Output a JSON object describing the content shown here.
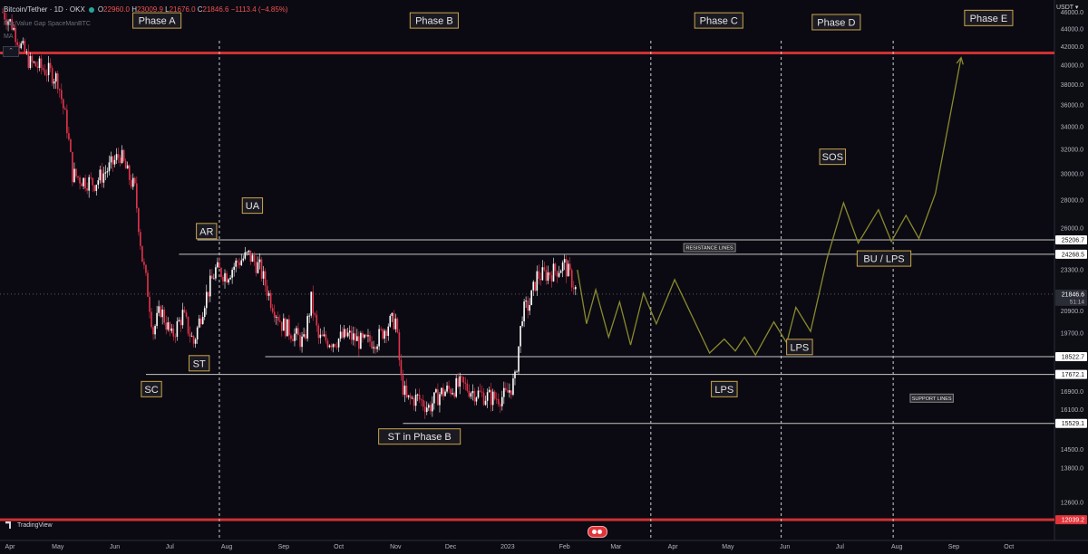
{
  "header": {
    "symbol": "Bitcoin/Tether · 1D · OKX",
    "ohlc_open_label": "O",
    "ohlc_open": "22960.0",
    "ohlc_high_label": "H",
    "ohlc_high": "23009.9",
    "ohlc_low_label": "L",
    "ohlc_low": "21676.0",
    "ohlc_close_label": "C",
    "ohlc_close": "21846.6",
    "ohlc_change": "−1113.4 (−4.85%)",
    "indicator_1": "Fair Value Gap SpaceManBTC",
    "indicator_2": "MA",
    "collapse_icon": "chevron-up-icon"
  },
  "currency_label": "USDT",
  "branding": "TradingView",
  "colors": {
    "background": "#0b0a12",
    "candle_up": "#ffffff",
    "candle_down": "#e5334b",
    "projection": "#8a8a2e",
    "label_border": "#c9a64b",
    "label_bg": "#1b1a22",
    "resistance_line": "#c6c6c6",
    "red_line": "#ff3b3b"
  },
  "chart_data": {
    "type": "candlestick",
    "title": "",
    "y_axis": {
      "scale": "log",
      "range": [
        11400,
        47500
      ],
      "tick_labels": [
        "46000.0",
        "44000.0",
        "42000.0",
        "40000.0",
        "38000.0",
        "36000.0",
        "34000.0",
        "32000.0",
        "30000.0",
        "28000.0",
        "26000.0",
        "23300.0",
        "20900.0",
        "19700.0",
        "17600.0",
        "16900.0",
        "16100.0",
        "15500.0",
        "14500.0",
        "13800.0",
        "12600.0",
        "12000.0"
      ],
      "price_badges": [
        {
          "value": "25206.7",
          "style": "plain"
        },
        {
          "value": "24268.5",
          "style": "plain"
        },
        {
          "value": "21846.6",
          "style": "current",
          "sub": "51:14"
        },
        {
          "value": "18522.7",
          "style": "plain"
        },
        {
          "value": "17672.1",
          "style": "plain"
        },
        {
          "value": "15529.1",
          "style": "plain"
        },
        {
          "value": "12039.2",
          "style": "red"
        }
      ]
    },
    "x_axis": {
      "tick_labels": [
        "Apr",
        "May",
        "Jun",
        "Jul",
        "Aug",
        "Sep",
        "Oct",
        "Nov",
        "Dec",
        "2023",
        "Feb",
        "Mar",
        "Apr",
        "May",
        "Jun",
        "Jul",
        "Aug",
        "Sep",
        "Oct"
      ],
      "tick_days": [
        0,
        30,
        61,
        91,
        122,
        153,
        183,
        214,
        244,
        275,
        306,
        334,
        365,
        395,
        426,
        456,
        487,
        518,
        548
      ],
      "start": "2022-04-01"
    },
    "candles_sampled": [
      {
        "d": 0,
        "v": 46000
      },
      {
        "d": 5,
        "v": 44500
      },
      {
        "d": 10,
        "v": 42000
      },
      {
        "d": 15,
        "v": 40200
      },
      {
        "d": 20,
        "v": 39800
      },
      {
        "d": 26,
        "v": 39200
      },
      {
        "d": 30,
        "v": 38500
      },
      {
        "d": 35,
        "v": 34000
      },
      {
        "d": 38,
        "v": 30000
      },
      {
        "d": 44,
        "v": 29500
      },
      {
        "d": 50,
        "v": 29300
      },
      {
        "d": 58,
        "v": 30500
      },
      {
        "d": 64,
        "v": 31600
      },
      {
        "d": 68,
        "v": 30000
      },
      {
        "d": 72,
        "v": 28800
      },
      {
        "d": 76,
        "v": 24000
      },
      {
        "d": 79,
        "v": 22000
      },
      {
        "d": 82,
        "v": 19800
      },
      {
        "d": 86,
        "v": 21000
      },
      {
        "d": 92,
        "v": 19500
      },
      {
        "d": 98,
        "v": 20700
      },
      {
        "d": 104,
        "v": 19200
      },
      {
        "d": 110,
        "v": 21500
      },
      {
        "d": 116,
        "v": 23300
      },
      {
        "d": 122,
        "v": 23000
      },
      {
        "d": 128,
        "v": 23800
      },
      {
        "d": 134,
        "v": 24200
      },
      {
        "d": 140,
        "v": 23400
      },
      {
        "d": 146,
        "v": 21500
      },
      {
        "d": 152,
        "v": 20200
      },
      {
        "d": 158,
        "v": 19700
      },
      {
        "d": 164,
        "v": 19200
      },
      {
        "d": 168,
        "v": 21500
      },
      {
        "d": 172,
        "v": 19400
      },
      {
        "d": 180,
        "v": 19300
      },
      {
        "d": 188,
        "v": 19600
      },
      {
        "d": 196,
        "v": 19200
      },
      {
        "d": 204,
        "v": 19400
      },
      {
        "d": 210,
        "v": 20200
      },
      {
        "d": 214,
        "v": 20400
      },
      {
        "d": 217,
        "v": 17400
      },
      {
        "d": 220,
        "v": 16500
      },
      {
        "d": 226,
        "v": 16600
      },
      {
        "d": 232,
        "v": 16200
      },
      {
        "d": 238,
        "v": 16800
      },
      {
        "d": 244,
        "v": 17000
      },
      {
        "d": 250,
        "v": 17200
      },
      {
        "d": 256,
        "v": 16900
      },
      {
        "d": 262,
        "v": 16700
      },
      {
        "d": 268,
        "v": 16600
      },
      {
        "d": 274,
        "v": 16700
      },
      {
        "d": 279,
        "v": 17400
      },
      {
        "d": 283,
        "v": 20800
      },
      {
        "d": 287,
        "v": 21300
      },
      {
        "d": 291,
        "v": 22900
      },
      {
        "d": 295,
        "v": 23000
      },
      {
        "d": 300,
        "v": 23200
      },
      {
        "d": 306,
        "v": 23600
      },
      {
        "d": 311,
        "v": 22400
      },
      {
        "d": 313,
        "v": 21846.6
      }
    ],
    "projection": [
      {
        "d": 313,
        "v": 23300
      },
      {
        "d": 318,
        "v": 20200
      },
      {
        "d": 323,
        "v": 22100
      },
      {
        "d": 330,
        "v": 19500
      },
      {
        "d": 336,
        "v": 21400
      },
      {
        "d": 342,
        "v": 19100
      },
      {
        "d": 349,
        "v": 21900
      },
      {
        "d": 356,
        "v": 20200
      },
      {
        "d": 366,
        "v": 22700
      },
      {
        "d": 376,
        "v": 20500
      },
      {
        "d": 385,
        "v": 18700
      },
      {
        "d": 393,
        "v": 19400
      },
      {
        "d": 399,
        "v": 18800
      },
      {
        "d": 404,
        "v": 19500
      },
      {
        "d": 410,
        "v": 18600
      },
      {
        "d": 420,
        "v": 20300
      },
      {
        "d": 427,
        "v": 19200
      },
      {
        "d": 432,
        "v": 21100
      },
      {
        "d": 440,
        "v": 19800
      },
      {
        "d": 449,
        "v": 24000
      },
      {
        "d": 458,
        "v": 27800
      },
      {
        "d": 466,
        "v": 25000
      },
      {
        "d": 477,
        "v": 27300
      },
      {
        "d": 484,
        "v": 25100
      },
      {
        "d": 492,
        "v": 26900
      },
      {
        "d": 499,
        "v": 25300
      },
      {
        "d": 508,
        "v": 28500
      },
      {
        "d": 522,
        "v": 40800
      }
    ],
    "horizontal_lines": [
      {
        "value": 25206.7,
        "from_day": 106,
        "label": "RESISTANCE LINES"
      },
      {
        "value": 24268.5,
        "from_day": 96
      },
      {
        "value": 18522.7,
        "from_day": 143
      },
      {
        "value": 17672.1,
        "from_day": 78
      },
      {
        "value": 15529.1,
        "from_day": 218,
        "label": "SUPPORT LINES"
      },
      {
        "value": 41300,
        "from_day": 0,
        "style": "red"
      },
      {
        "value": 12039.2,
        "from_day": 0,
        "style": "red"
      }
    ],
    "phase_dividers": [
      118,
      353,
      424,
      485
    ],
    "phase_labels": [
      {
        "text": "Phase A",
        "d": 84,
        "v": 45000
      },
      {
        "text": "Phase B",
        "d": 235,
        "v": 45000
      },
      {
        "text": "Phase C",
        "d": 390,
        "v": 45000
      },
      {
        "text": "Phase D",
        "d": 454,
        "v": 44800
      },
      {
        "text": "Phase E",
        "d": 537,
        "v": 45300
      }
    ],
    "annotations": [
      {
        "text": "AR",
        "d": 111,
        "v": 25800
      },
      {
        "text": "UA",
        "d": 136,
        "v": 27600
      },
      {
        "text": "ST",
        "d": 107,
        "v": 18200
      },
      {
        "text": "SC",
        "d": 81,
        "v": 17000
      },
      {
        "text": "ST in Phase B",
        "d": 227,
        "v": 15000
      },
      {
        "text": "LPS",
        "d": 393,
        "v": 17000
      },
      {
        "text": "LPS",
        "d": 434,
        "v": 19000
      },
      {
        "text": "SOS",
        "d": 452,
        "v": 31400
      },
      {
        "text": "BU / LPS",
        "d": 480,
        "v": 24000
      },
      {
        "text": "RESISTANCE LINES",
        "d": 385,
        "v": 24700,
        "small": true
      },
      {
        "text": "SUPPORT LINES",
        "d": 506,
        "v": 16600,
        "small": true
      }
    ]
  }
}
